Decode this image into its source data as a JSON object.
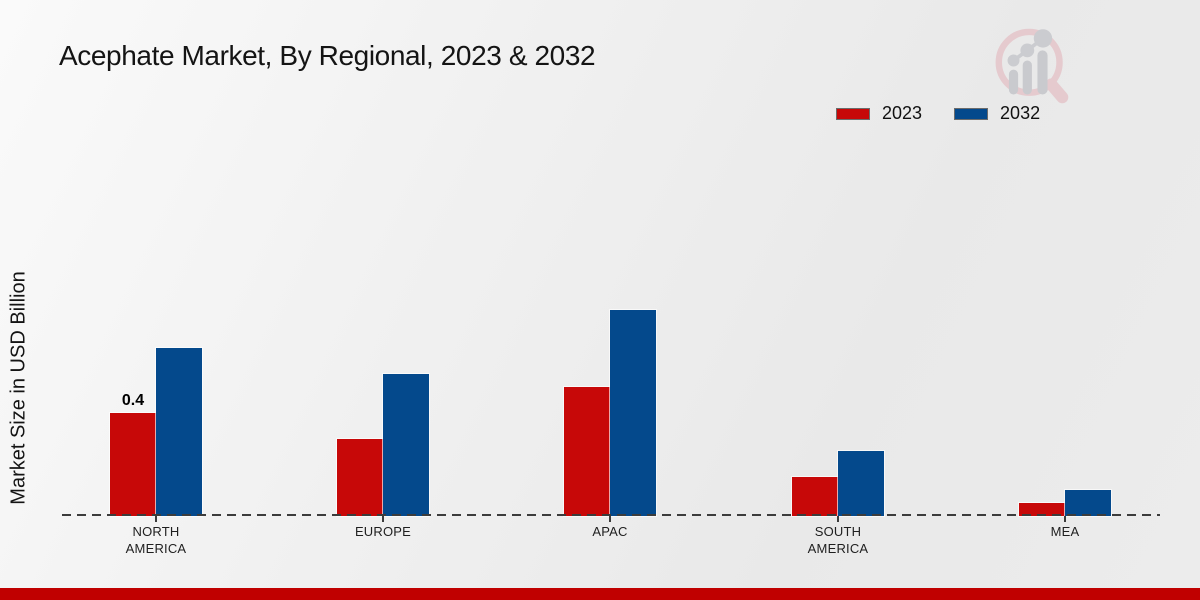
{
  "title": "Acephate Market, By Regional, 2023 & 2032",
  "y_axis_label": "Market Size in USD Billion",
  "legend": {
    "items": [
      {
        "label": "2023",
        "color": "#c70808"
      },
      {
        "label": "2032",
        "color": "#04498c"
      }
    ]
  },
  "footer": {
    "color": "#c00000"
  },
  "colors": {
    "series_2023": "#c70808",
    "series_2032": "#04498c",
    "baseline": "#3c3c3c",
    "background": "#ececec"
  },
  "chart_data": {
    "type": "bar",
    "title": "Acephate Market, By Regional, 2023 & 2032",
    "xlabel": "",
    "ylabel": "Market Size in USD Billion",
    "categories": [
      "NORTH\nAMERICA",
      "EUROPE",
      "APAC",
      "SOUTH\nAMERICA",
      "MEA"
    ],
    "series": [
      {
        "name": "2023",
        "color": "#c70808",
        "values": [
          0.4,
          0.3,
          0.5,
          0.15,
          0.05
        ]
      },
      {
        "name": "2032",
        "color": "#04498c",
        "values": [
          0.65,
          0.55,
          0.8,
          0.25,
          0.1
        ]
      }
    ],
    "bar_labels": [
      {
        "series_index": 0,
        "category_index": 0,
        "text": "0.4"
      }
    ],
    "ylim": [
      0,
      1.0
    ],
    "grid": false,
    "baseline_style": "dashed",
    "legend_position": "upper-right"
  }
}
